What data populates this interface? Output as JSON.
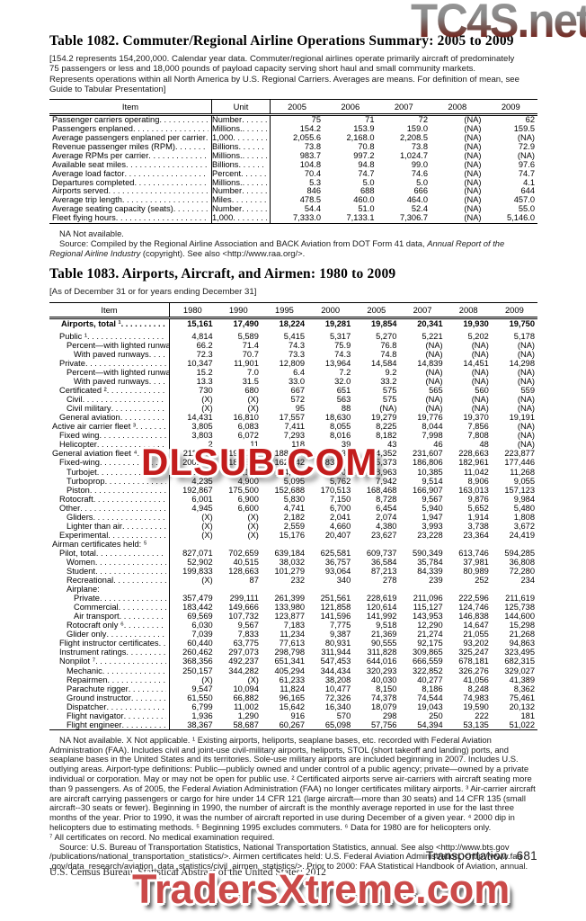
{
  "watermarks": {
    "top": "TC4S.net",
    "middle": "DLSUB.COM",
    "bottom": "TradersXtreme.com"
  },
  "table1082": {
    "title": "Table 1082. Commuter/Regional Airline Operations Summary: 2005 to 2009",
    "note": "[154.2 represents 154,200,000. Calendar year data. Commuter/regional airlines operate primarily aircraft of predominately 75 passengers or less and 18,000 pounds of payload capacity serving short haul and small community markets. Represents operations within all North America by U.S. Regional Carriers. Averages are means. For definition of mean, see Guide to Tabular Presentation]",
    "columns": [
      "Item",
      "Unit",
      "2005",
      "2006",
      "2007",
      "2008",
      "2009"
    ],
    "rows": [
      {
        "item": "Passenger carriers operating",
        "unit": "Number",
        "values": [
          "75",
          "71",
          "72",
          "(NA)",
          "62"
        ]
      },
      {
        "item": "Passengers enplaned",
        "unit": "Millions.",
        "values": [
          "154.2",
          "153.9",
          "159.0",
          "(NA)",
          "159.5"
        ]
      },
      {
        "item": "Average passengers enplaned per carrier",
        "unit": "1,000",
        "values": [
          "2,055.6",
          "2,168.0",
          "2,208.5",
          "(NA)",
          "(NA)"
        ]
      },
      {
        "item": "Revenue passenger miles (RPM)",
        "unit": "Billions",
        "values": [
          "73.8",
          "70.8",
          "73.8",
          "(NA)",
          "72.9"
        ]
      },
      {
        "item": "Average RPMs per carrier",
        "unit": "Millions.",
        "values": [
          "983.7",
          "997.2",
          "1,024.7",
          "(NA)",
          "(NA)"
        ]
      },
      {
        "item": "Available seat miles",
        "unit": "Billions",
        "values": [
          "104.8",
          "94.8",
          "99.0",
          "(NA)",
          "97.6"
        ]
      },
      {
        "item": "Average load factor",
        "unit": "Percent",
        "values": [
          "70.4",
          "74.7",
          "74.6",
          "(NA)",
          "74.7"
        ]
      },
      {
        "item": "Departures completed",
        "unit": "Millions.",
        "values": [
          "5.3",
          "5.0",
          "5.0",
          "(NA)",
          "4.1"
        ]
      },
      {
        "item": "Airports served",
        "unit": "Number",
        "values": [
          "846",
          "688",
          "666",
          "(NA)",
          "644"
        ]
      },
      {
        "item": "Average trip length",
        "unit": "Miles",
        "values": [
          "478.5",
          "460.0",
          "464.0",
          "(NA)",
          "457.0"
        ]
      },
      {
        "item": "Average seating capacity (seats)",
        "unit": "Number",
        "values": [
          "54.4",
          "51.0",
          "52.4",
          "(NA)",
          "55.0"
        ]
      },
      {
        "item": "Fleet flying hours",
        "unit": "1,000",
        "values": [
          "7,333.0",
          "7,133.1",
          "7,306.7",
          "(NA)",
          "5,146.0"
        ]
      }
    ],
    "footnote": "NA Not available.",
    "source_prefix": "Source: Compiled by the Regional Airline Association and BACK Aviation from DOT Form 41 data, ",
    "source_italic": "Annual Report of the Regional Airline Industry",
    "source_suffix": " (copyright). See also <http://www.raa.org/>."
  },
  "table1083": {
    "title": "Table 1083. Airports, Aircraft, and Airmen: 1980 to 2009",
    "note": "[As of December 31 or for years ending December 31]",
    "columns": [
      "Item",
      "1980",
      "1990",
      "1995",
      "2000",
      "2005",
      "2007",
      "2008",
      "2009"
    ],
    "rows": [
      {
        "item": "Airports, total ¹",
        "indent": "T",
        "bold": true,
        "gap_after": true,
        "values": [
          "15,161",
          "17,490",
          "18,224",
          "19,281",
          "19,854",
          "20,341",
          "19,930",
          "19,750"
        ]
      },
      {
        "item": "Public ¹",
        "indent": 1,
        "values": [
          "4,814",
          "5,589",
          "5,415",
          "5,317",
          "5,270",
          "5,221",
          "5,202",
          "5,178"
        ]
      },
      {
        "item": "Percent—with lighted runways",
        "indent": 2,
        "values": [
          "66.2",
          "71.4",
          "74.3",
          "75.9",
          "76.8",
          "(NA)",
          "(NA)",
          "(NA)"
        ]
      },
      {
        "item": "With paved runways",
        "indent": 3,
        "values": [
          "72.3",
          "70.7",
          "73.3",
          "74.3",
          "74.8",
          "(NA)",
          "(NA)",
          "(NA)"
        ]
      },
      {
        "item": "Private",
        "indent": 1,
        "values": [
          "10,347",
          "11,901",
          "12,809",
          "13,964",
          "14,584",
          "14,839",
          "14,451",
          "14,298"
        ]
      },
      {
        "item": "Percent—with lighted runways",
        "indent": 2,
        "values": [
          "15.2",
          "7.0",
          "6.4",
          "7.2",
          "9.2",
          "(NA)",
          "(NA)",
          "(NA)"
        ]
      },
      {
        "item": "With paved runways",
        "indent": 3,
        "values": [
          "13.3",
          "31.5",
          "33.0",
          "32.0",
          "33.2",
          "(NA)",
          "(NA)",
          "(NA)"
        ]
      },
      {
        "item": "Certificated ²",
        "indent": 1,
        "values": [
          "730",
          "680",
          "667",
          "651",
          "575",
          "565",
          "560",
          "559"
        ]
      },
      {
        "item": "Civil",
        "indent": 2,
        "values": [
          "(X)",
          "(X)",
          "572",
          "563",
          "575",
          "(NA)",
          "(NA)",
          "(NA)"
        ]
      },
      {
        "item": "Civil military",
        "indent": 2,
        "values": [
          "(X)",
          "(X)",
          "95",
          "88",
          "(NA)",
          "(NA)",
          "(NA)",
          "(NA)"
        ]
      },
      {
        "item": "General aviation",
        "indent": 1,
        "values": [
          "14,431",
          "16,810",
          "17,557",
          "18,630",
          "19,279",
          "19,776",
          "19,370",
          "19,191"
        ]
      },
      {
        "item": "Active air carrier fleet ³",
        "indent": 0,
        "values": [
          "3,805",
          "6,083",
          "7,411",
          "8,055",
          "8,225",
          "8,044",
          "7,856",
          "(NA)"
        ]
      },
      {
        "item": "Fixed wing",
        "indent": 1,
        "values": [
          "3,803",
          "6,072",
          "7,293",
          "8,016",
          "8,182",
          "7,998",
          "7,808",
          "(NA)"
        ]
      },
      {
        "item": "Helicopter",
        "indent": 1,
        "values": [
          "2",
          "11",
          "118",
          "39",
          "43",
          "46",
          "48",
          "(NA)"
        ]
      },
      {
        "item": "General aviation fleet ⁴",
        "indent": 0,
        "values": [
          "211,043",
          "198,000",
          "188,089",
          "217,533",
          "224,352",
          "231,607",
          "228,663",
          "223,877"
        ]
      },
      {
        "item": "Fixed-wing",
        "indent": 1,
        "values": [
          "200,094",
          "184,500",
          "162,342",
          "183,276",
          "185,373",
          "186,806",
          "182,961",
          "177,446"
        ]
      },
      {
        "item": "Turbojet",
        "indent": 2,
        "values": [
          "2,992",
          "4,100",
          "4,559",
          "7,001",
          "8,963",
          "10,385",
          "11,042",
          "11,268"
        ]
      },
      {
        "item": "Turboprop",
        "indent": 2,
        "values": [
          "4,235",
          "4,900",
          "5,095",
          "5,762",
          "7,942",
          "9,514",
          "8,906",
          "9,055"
        ]
      },
      {
        "item": "Piston",
        "indent": 2,
        "values": [
          "192,867",
          "175,500",
          "152,688",
          "170,513",
          "168,468",
          "166,907",
          "163,013",
          "157,123"
        ]
      },
      {
        "item": "Rotocraft",
        "indent": 1,
        "values": [
          "6,001",
          "6,900",
          "5,830",
          "7,150",
          "8,728",
          "9,567",
          "9,876",
          "9,984"
        ]
      },
      {
        "item": "Other",
        "indent": 1,
        "values": [
          "4,945",
          "6,600",
          "4,741",
          "6,700",
          "6,454",
          "5,940",
          "5,652",
          "5,480"
        ]
      },
      {
        "item": "Gliders",
        "indent": 2,
        "values": [
          "(X)",
          "(X)",
          "2,182",
          "2,041",
          "2,074",
          "1,947",
          "1,914",
          "1,808"
        ]
      },
      {
        "item": "Lighter than air",
        "indent": 2,
        "values": [
          "(X)",
          "(X)",
          "2,559",
          "4,660",
          "4,380",
          "3,993",
          "3,738",
          "3,672"
        ]
      },
      {
        "item": "Experimental",
        "indent": 1,
        "values": [
          "(X)",
          "(X)",
          "15,176",
          "20,407",
          "23,627",
          "23,228",
          "23,364",
          "24,419"
        ]
      },
      {
        "item": "Airman certificates held: ⁵",
        "indent": 0,
        "label_only": true,
        "values": [
          "",
          "",
          "",
          "",
          "",
          "",
          "",
          ""
        ]
      },
      {
        "item": "Pilot, total",
        "indent": 1,
        "values": [
          "827,071",
          "702,659",
          "639,184",
          "625,581",
          "609,737",
          "590,349",
          "613,746",
          "594,285"
        ]
      },
      {
        "item": "Women",
        "indent": 2,
        "values": [
          "52,902",
          "40,515",
          "38,032",
          "36,757",
          "36,584",
          "35,784",
          "37,981",
          "36,808"
        ]
      },
      {
        "item": "Student",
        "indent": 2,
        "values": [
          "199,833",
          "128,663",
          "101,279",
          "93,064",
          "87,213",
          "84,339",
          "80,989",
          "72,280"
        ]
      },
      {
        "item": "Recreational",
        "indent": 2,
        "values": [
          "(X)",
          "87",
          "232",
          "340",
          "278",
          "239",
          "252",
          "234"
        ]
      },
      {
        "item": "Airplane:",
        "indent": 2,
        "label_only": true,
        "values": [
          "",
          "",
          "",
          "",
          "",
          "",
          "",
          ""
        ]
      },
      {
        "item": "Private",
        "indent": 3,
        "values": [
          "357,479",
          "299,111",
          "261,399",
          "251,561",
          "228,619",
          "211,096",
          "222,596",
          "211,619"
        ]
      },
      {
        "item": "Commercial",
        "indent": 3,
        "values": [
          "183,442",
          "149,666",
          "133,980",
          "121,858",
          "120,614",
          "115,127",
          "124,746",
          "125,738"
        ]
      },
      {
        "item": "Air transport",
        "indent": 3,
        "values": [
          "69,569",
          "107,732",
          "123,877",
          "141,596",
          "141,992",
          "143,953",
          "146,838",
          "144,600"
        ]
      },
      {
        "item": "Rotocraft only ⁶",
        "indent": 2,
        "values": [
          "6,030",
          "9,567",
          "7,183",
          "7,775",
          "9,518",
          "12,290",
          "14,647",
          "15,298"
        ]
      },
      {
        "item": "Glider only",
        "indent": 2,
        "values": [
          "7,039",
          "7,833",
          "11,234",
          "9,387",
          "21,369",
          "21,274",
          "21,055",
          "21,268"
        ]
      },
      {
        "item": "Flight instructor certificates",
        "indent": 1,
        "values": [
          "60,440",
          "63,775",
          "77,613",
          "80,931",
          "90,555",
          "92,175",
          "93,202",
          "94,863"
        ]
      },
      {
        "item": "Instrument ratings",
        "indent": 1,
        "values": [
          "260,462",
          "297,073",
          "298,798",
          "311,944",
          "311,828",
          "309,865",
          "325,247",
          "323,495"
        ]
      },
      {
        "item": "Nonpilot ⁷",
        "indent": 1,
        "values": [
          "368,356",
          "492,237",
          "651,341",
          "547,453",
          "644,016",
          "666,559",
          "678,181",
          "682,315"
        ]
      },
      {
        "item": "Mechanic",
        "indent": 2,
        "values": [
          "250,157",
          "344,282",
          "405,294",
          "344,434",
          "320,293",
          "322,852",
          "326,276",
          "329,027"
        ]
      },
      {
        "item": "Repairmen",
        "indent": 2,
        "values": [
          "(X)",
          "(X)",
          "61,233",
          "38,208",
          "40,030",
          "40,277",
          "41,056",
          "41,389"
        ]
      },
      {
        "item": "Parachute rigger",
        "indent": 2,
        "values": [
          "9,547",
          "10,094",
          "11,824",
          "10,477",
          "8,150",
          "8,186",
          "8,248",
          "8,362"
        ]
      },
      {
        "item": "Ground instructor",
        "indent": 2,
        "values": [
          "61,550",
          "66,882",
          "96,165",
          "72,326",
          "74,378",
          "74,544",
          "74,983",
          "75,461"
        ]
      },
      {
        "item": "Dispatcher",
        "indent": 2,
        "values": [
          "6,799",
          "11,002",
          "15,642",
          "16,340",
          "18,079",
          "19,043",
          "19,590",
          "20,132"
        ]
      },
      {
        "item": "Flight navigator",
        "indent": 2,
        "values": [
          "1,936",
          "1,290",
          "916",
          "570",
          "298",
          "250",
          "222",
          "181"
        ]
      },
      {
        "item": "Flight engineer",
        "indent": 2,
        "values": [
          "38,367",
          "58,687",
          "60,267",
          "65,098",
          "57,756",
          "54,394",
          "53,135",
          "51,022"
        ]
      }
    ],
    "footnote1": "NA Not available. X Not applicable. ¹ Existing airports, heliports, seaplane bases, etc. recorded with Federal Aviation Administration (FAA). Includes civil and joint-use civil-military airports, heliports, STOL (short takeoff and landing) ports, and seaplane bases in the United States and its territories. Sole-use military airports are included beginning in 2007. Includes U.S. outlying areas. Airport-type definitions: Public—publicly owned and under control of a public agency; private—owned by a private individual or corporation. May or may not be open for public use. ² Certificated airports serve air-carriers with aircraft seating more than 9 passengers. As of 2005, the Federal Aviation Administration (FAA) no longer certificates military airports. ³ Air-carrier aircraft are aircraft carrying passengers or cargo for hire under 14 CFR 121 (large aircraft—more than 30 seats) and 14 CFR 135 (small aircraft--30 seats or fewer). Beginning in 1990, the number of aircraft is the monthly average reported in use for the last three months of the year. Prior to 1990, it was the number of aircraft reported in use during December of a given year. ⁴ 2000 dip in helicopters due to estimating methods. ⁵ Beginning 1995 excludes commuters. ⁶ Data for 1980 are for helicopters only.",
    "footnote2": "⁷ All certificates on record. No medical examination required.",
    "source": "Source: U.S. Bureau of Transportation Statistics, National Transportation Statistics, annual. See also <http://www.bts.gov /publications/national_transportation_statistics/>. Airmen certificates held: U.S. Federal Aviation Administration, <http://www.faa .gov/data_research/aviation_data_statistics/civil_airmen_statistics/>. Prior to 2000: FAA Statistical Handbook of Aviation, annual."
  },
  "footer": {
    "section": "Transportation",
    "page_number": "681",
    "credit": "U.S. Census Bureau, Statistical Abstract of the United States: 2012"
  }
}
